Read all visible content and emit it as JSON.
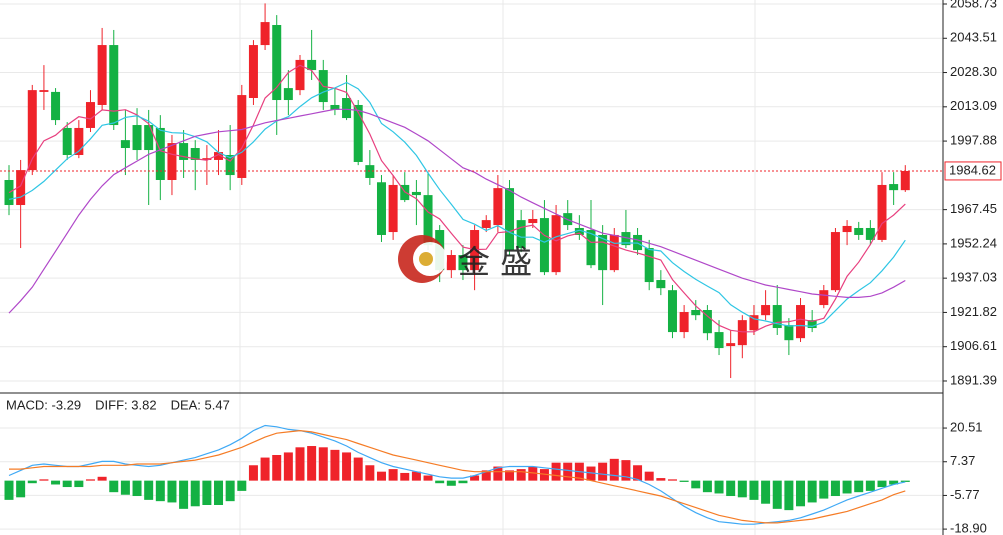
{
  "watermark": "金 盛",
  "chart_data": [
    {
      "type": "candlestick",
      "up_color": "#ef232a",
      "down_color": "#14b143",
      "open": [
        1980.6,
        1969.5,
        1985.0,
        2019.7,
        2019.7,
        2003.7,
        1991.7,
        2003.7,
        2013.9,
        2040.5,
        1998.3,
        2005.0,
        2005.0,
        2003.7,
        1980.6,
        1997.0,
        1994.8,
        1989.5,
        1989.5,
        1991.7,
        1981.5,
        2017.0,
        2040.5,
        2049.4,
        2021.4,
        2020.5,
        2033.9,
        2029.4,
        2013.9,
        2017.0,
        2013.9,
        1987.2,
        1979.6,
        1957.5,
        1978.4,
        1975.3,
        1973.9,
        1958.4,
        1940.6,
        1947.3,
        1940.6,
        1959.3,
        1960.6,
        1977.0,
        1962.8,
        1961.5,
        1963.7,
        1939.7,
        1965.9,
        1959.3,
        1958.4,
        1956.2,
        1940.6,
        1957.5,
        1956.2,
        1950.4,
        1936.2,
        1931.7,
        1913.1,
        1922.9,
        1922.9,
        1913.1,
        1906.9,
        1907.3,
        1913.9,
        1920.6,
        1925.1,
        1916.2,
        1910.4,
        1918.4,
        1925.1,
        1931.7,
        1957.5,
        1959.3,
        1959.3,
        1954.0,
        1978.8,
        1976.1
      ],
      "high": [
        1987.2,
        1989.5,
        2022.8,
        2031.6,
        2021.4,
        2006.3,
        2007.2,
        2020.5,
        2048.1,
        2047.2,
        2011.7,
        2012.5,
        2011.7,
        2009.4,
        2000.6,
        2002.8,
        1998.3,
        1996.1,
        2002.8,
        2005.0,
        2022.8,
        2042.7,
        2059.0,
        2053.8,
        2029.4,
        2036.1,
        2047.2,
        2033.9,
        2021.4,
        2027.2,
        2016.1,
        1993.9,
        1982.8,
        1982.8,
        1984.1,
        1980.6,
        1984.1,
        1960.6,
        1949.5,
        1951.7,
        1960.6,
        1965.0,
        1982.8,
        1980.6,
        1967.3,
        1967.3,
        1971.7,
        1969.5,
        1971.7,
        1965.0,
        1971.7,
        1960.6,
        1959.3,
        1967.3,
        1959.3,
        1954.0,
        1940.6,
        1934.0,
        1925.1,
        1927.3,
        1925.1,
        1918.4,
        1913.9,
        1920.6,
        1925.1,
        1931.7,
        1934.0,
        1919.3,
        1928.2,
        1922.9,
        1934.0,
        1959.3,
        1962.8,
        1962.0,
        1962.8,
        1984.1,
        1984.1,
        1987.2
      ],
      "low": [
        1965.0,
        1950.4,
        1982.8,
        2011.7,
        2005.0,
        1989.5,
        1990.3,
        2001.9,
        2011.7,
        2002.8,
        1982.8,
        1989.5,
        1969.5,
        1971.7,
        1973.9,
        1981.5,
        1976.1,
        1978.4,
        1982.8,
        1976.1,
        1978.4,
        2013.9,
        2038.3,
        2000.6,
        2009.4,
        2018.3,
        2025.0,
        2011.7,
        2009.4,
        2007.2,
        1987.2,
        1978.4,
        1953.1,
        1954.0,
        1970.8,
        1960.6,
        1949.5,
        1935.3,
        1937.1,
        1936.2,
        1931.7,
        1957.5,
        1957.5,
        1947.3,
        1948.6,
        1959.3,
        1938.4,
        1938.4,
        1958.4,
        1954.0,
        1941.5,
        1925.1,
        1939.7,
        1950.4,
        1947.3,
        1931.7,
        1929.5,
        1910.4,
        1910.4,
        1918.4,
        1909.5,
        1902.9,
        1892.7,
        1901.5,
        1911.8,
        1918.4,
        1911.8,
        1902.9,
        1908.7,
        1913.1,
        1923.7,
        1930.9,
        1951.7,
        1954.0,
        1951.7,
        1953.1,
        1969.5,
        1975.3
      ],
      "close": [
        1969.5,
        1985.0,
        2020.5,
        2020.5,
        2007.2,
        1991.7,
        2003.7,
        2015.2,
        2040.5,
        2005.0,
        1994.8,
        1993.9,
        1993.9,
        1980.6,
        1997.0,
        1989.5,
        1989.5,
        1990.3,
        1993.0,
        1982.8,
        2018.3,
        2040.5,
        2050.7,
        2016.1,
        2016.1,
        2033.9,
        2029.4,
        2015.2,
        2011.7,
        2008.1,
        1988.6,
        1981.5,
        1956.2,
        1978.4,
        1971.7,
        1973.9,
        1951.7,
        1940.6,
        1947.3,
        1940.6,
        1958.4,
        1962.8,
        1977.0,
        1949.5,
        1950.4,
        1963.3,
        1939.7,
        1965.0,
        1960.6,
        1956.2,
        1942.8,
        1940.6,
        1956.2,
        1951.7,
        1949.5,
        1935.3,
        1932.6,
        1913.1,
        1922.0,
        1920.6,
        1912.6,
        1906.0,
        1908.2,
        1918.4,
        1920.6,
        1925.1,
        1914.9,
        1909.5,
        1925.1,
        1914.9,
        1931.7,
        1957.5,
        1960.2,
        1956.2,
        1954.0,
        1978.4,
        1976.1,
        1984.6
      ],
      "lines": [
        {
          "color": "#e8407f",
          "values": [
            1975,
            1978,
            1990,
            1998,
            2000.5,
            2005,
            2008.7,
            2007.7,
            2011.7,
            2011.2,
            2011.8,
            2009.5,
            2005.6,
            1993.6,
            1992,
            1991,
            1990,
            1989.4,
            1991.9,
            1989,
            1994.8,
            2005,
            2017,
            2021.7,
            2028.3,
            2031.5,
            2029.2,
            2022.1,
            2021.3,
            2019.5,
            2010.6,
            2001,
            1989.2,
            1982.6,
            1975.3,
            1972.3,
            1966.4,
            1963.3,
            1957,
            1950.8,
            1949.7,
            1949.9,
            1957.2,
            1957.7,
            1959.6,
            1960.6,
            1956,
            1953.6,
            1955.8,
            1957,
            1952.9,
            1953.1,
            1951.3,
            1949.5,
            1948.2,
            1946.7,
            1945.1,
            1936.4,
            1930.5,
            1924.7,
            1920.2,
            1916.1,
            1913.9,
            1913.2,
            1913.2,
            1915.7,
            1917.4,
            1917.7,
            1918.8,
            1917.9,
            1919.2,
            1927.7,
            1937.9,
            1944.1,
            1952,
            1961.3,
            1965,
            1969.9
          ]
        },
        {
          "color": "#2fc6e4",
          "values": [
            1972,
            1973,
            1976,
            1980,
            1985,
            1990,
            1993.4,
            1998.9,
            2004.9,
            2005.9,
            2008.4,
            2009.1,
            2006.7,
            2002.7,
            2001.6,
            2001.4,
            1999.8,
            1997.5,
            1992.8,
            1990.5,
            1992.9,
            1997.5,
            2003.2,
            2006.8,
            2008.7,
            2013.2,
            2017.1,
            2019.6,
            2021.5,
            2023.9,
            2021.1,
            2015.1,
            2005.7,
            2002,
            1997.4,
            1991.5,
            1983.7,
            1976.3,
            1969.8,
            1963.1,
            1961,
            1958.2,
            1960.3,
            1957.4,
            1955.2,
            1955.2,
            1953,
            1955.4,
            1956.8,
            1958.3,
            1956.8,
            1954.6,
            1952.5,
            1952.7,
            1952.6,
            1949.8,
            1949.1,
            1943.9,
            1940,
            1936.5,
            1933.5,
            1930.6,
            1925.2,
            1921.9,
            1919,
            1918,
            1916.8,
            1915.8,
            1916,
            1915.6,
            1917.5,
            1922.6,
            1927.8,
            1931.5,
            1935,
            1940.3,
            1946.4,
            1953.9
          ]
        },
        {
          "color": "#b048c9",
          "values": [
            1921.5,
            1927,
            1933,
            1941,
            1949,
            1957,
            1965,
            1972,
            1978,
            1983,
            1986,
            1989,
            1992,
            1994,
            1996,
            1998,
            2000,
            2001,
            2002,
            2002.5,
            2003,
            2004.5,
            2006,
            2007,
            2008,
            2009,
            2010,
            2011,
            2012,
            2012,
            2011.5,
            2010,
            2008,
            2006,
            2004,
            2001,
            1998,
            1994,
            1990,
            1986,
            1984,
            1981,
            1978.5,
            1976,
            1973,
            1970.5,
            1968,
            1965.5,
            1963,
            1961,
            1959,
            1957,
            1956,
            1955,
            1954,
            1952.5,
            1951,
            1949,
            1947,
            1945,
            1943,
            1941,
            1939,
            1937,
            1935.5,
            1934,
            1933,
            1932,
            1931,
            1930,
            1929.5,
            1929,
            1928.5,
            1928.5,
            1929,
            1930.5,
            1933,
            1936
          ]
        }
      ],
      "last_price": 1984.62,
      "last_price_color": "#ef232a",
      "ylim": [
        1886.5,
        2060.5
      ],
      "yticks": [
        2058.73,
        2043.51,
        {
          "value": 2028.3,
          "label": "2028.30"
        },
        2013.09,
        1997.88,
        1967.45,
        1952.24,
        1937.03,
        1921.82,
        1906.61,
        1891.39
      ],
      "grid": true
    },
    {
      "type": "macd",
      "legend": [
        {
          "label": "MACD: -3.29",
          "color": "#14b143"
        },
        {
          "label": "DIFF: 3.82",
          "color": "#3fa9f5"
        },
        {
          "label": "DEA: 5.47",
          "color": "#f57c26"
        }
      ],
      "histogram": [
        -7.5,
        -6.5,
        -1,
        0.5,
        -1.5,
        -2.5,
        -2.5,
        0.5,
        1.5,
        -4.5,
        -5.5,
        -6,
        -7.5,
        -8,
        -8.5,
        -11,
        -10,
        -9.5,
        -9.5,
        -8,
        -4,
        6,
        9,
        10,
        11,
        13,
        13.5,
        13,
        12,
        11,
        9,
        6,
        3.5,
        4.5,
        3,
        3.5,
        2,
        -1,
        -2,
        -1,
        2,
        4,
        5.5,
        4,
        4.5,
        5.5,
        4.5,
        7,
        7,
        7,
        5.5,
        7,
        8.5,
        8,
        6,
        3.5,
        1,
        0.5,
        -0.5,
        -3,
        -4.5,
        -5,
        -6,
        -6.5,
        -7.5,
        -9,
        -11,
        -11.5,
        -10,
        -8.5,
        -7,
        -6,
        -5,
        -4.5,
        -4,
        -2.5,
        -1.5,
        -0.5
      ],
      "up_color": "#ef232a",
      "down_color": "#14b143",
      "diff": {
        "color": "#3fa9f5",
        "values": [
          2,
          4,
          6,
          6.5,
          6,
          5.5,
          5.5,
          6.5,
          7.5,
          7.5,
          6.5,
          6,
          5.5,
          6,
          7,
          8,
          9,
          10.5,
          12,
          14,
          16.5,
          19.5,
          21.5,
          21,
          20,
          19.5,
          18.5,
          17,
          15.5,
          13.5,
          11,
          9,
          7,
          5.5,
          4.5,
          3.5,
          2.5,
          1.5,
          1,
          1,
          2,
          3.5,
          5,
          5.5,
          5.5,
          5.5,
          5,
          4.5,
          4,
          3.5,
          3,
          2.5,
          2,
          1.5,
          0.5,
          -1.5,
          -4,
          -7,
          -10,
          -12.5,
          -14.5,
          -16,
          -16.5,
          -17,
          -17,
          -16.5,
          -16,
          -15.5,
          -14.5,
          -13,
          -11.5,
          -9.5,
          -7.5,
          -6,
          -4.5,
          -3,
          -1.5,
          -0.5
        ]
      },
      "dea": {
        "color": "#f57c26",
        "values": [
          4.5,
          4.5,
          5,
          5.5,
          5.5,
          5.5,
          5.5,
          5.5,
          6,
          6,
          6,
          6.5,
          6.5,
          6.5,
          7,
          7.5,
          8,
          9,
          10,
          11.5,
          13,
          15,
          17,
          18.5,
          19,
          19.5,
          19,
          18,
          17,
          16,
          14.5,
          13,
          11.5,
          10,
          9,
          8,
          7,
          6,
          5,
          4,
          3.5,
          3.5,
          3.5,
          3.5,
          3.5,
          3,
          2.5,
          2,
          1.5,
          1,
          0,
          -1,
          -2,
          -3,
          -4,
          -5,
          -6,
          -7.5,
          -9,
          -10.5,
          -12,
          -13.5,
          -14.5,
          -15.5,
          -16,
          -16.5,
          -16.5,
          -16,
          -15.5,
          -15,
          -14,
          -13,
          -12,
          -10.5,
          -9,
          -7.5,
          -5.5,
          -4
        ]
      },
      "ylim": [
        -21.2,
        33.4
      ],
      "yticks": [
        20.51,
        7.37,
        -5.77,
        {
          "value": -18.9,
          "label": "-18.90"
        }
      ],
      "grid": true
    }
  ]
}
